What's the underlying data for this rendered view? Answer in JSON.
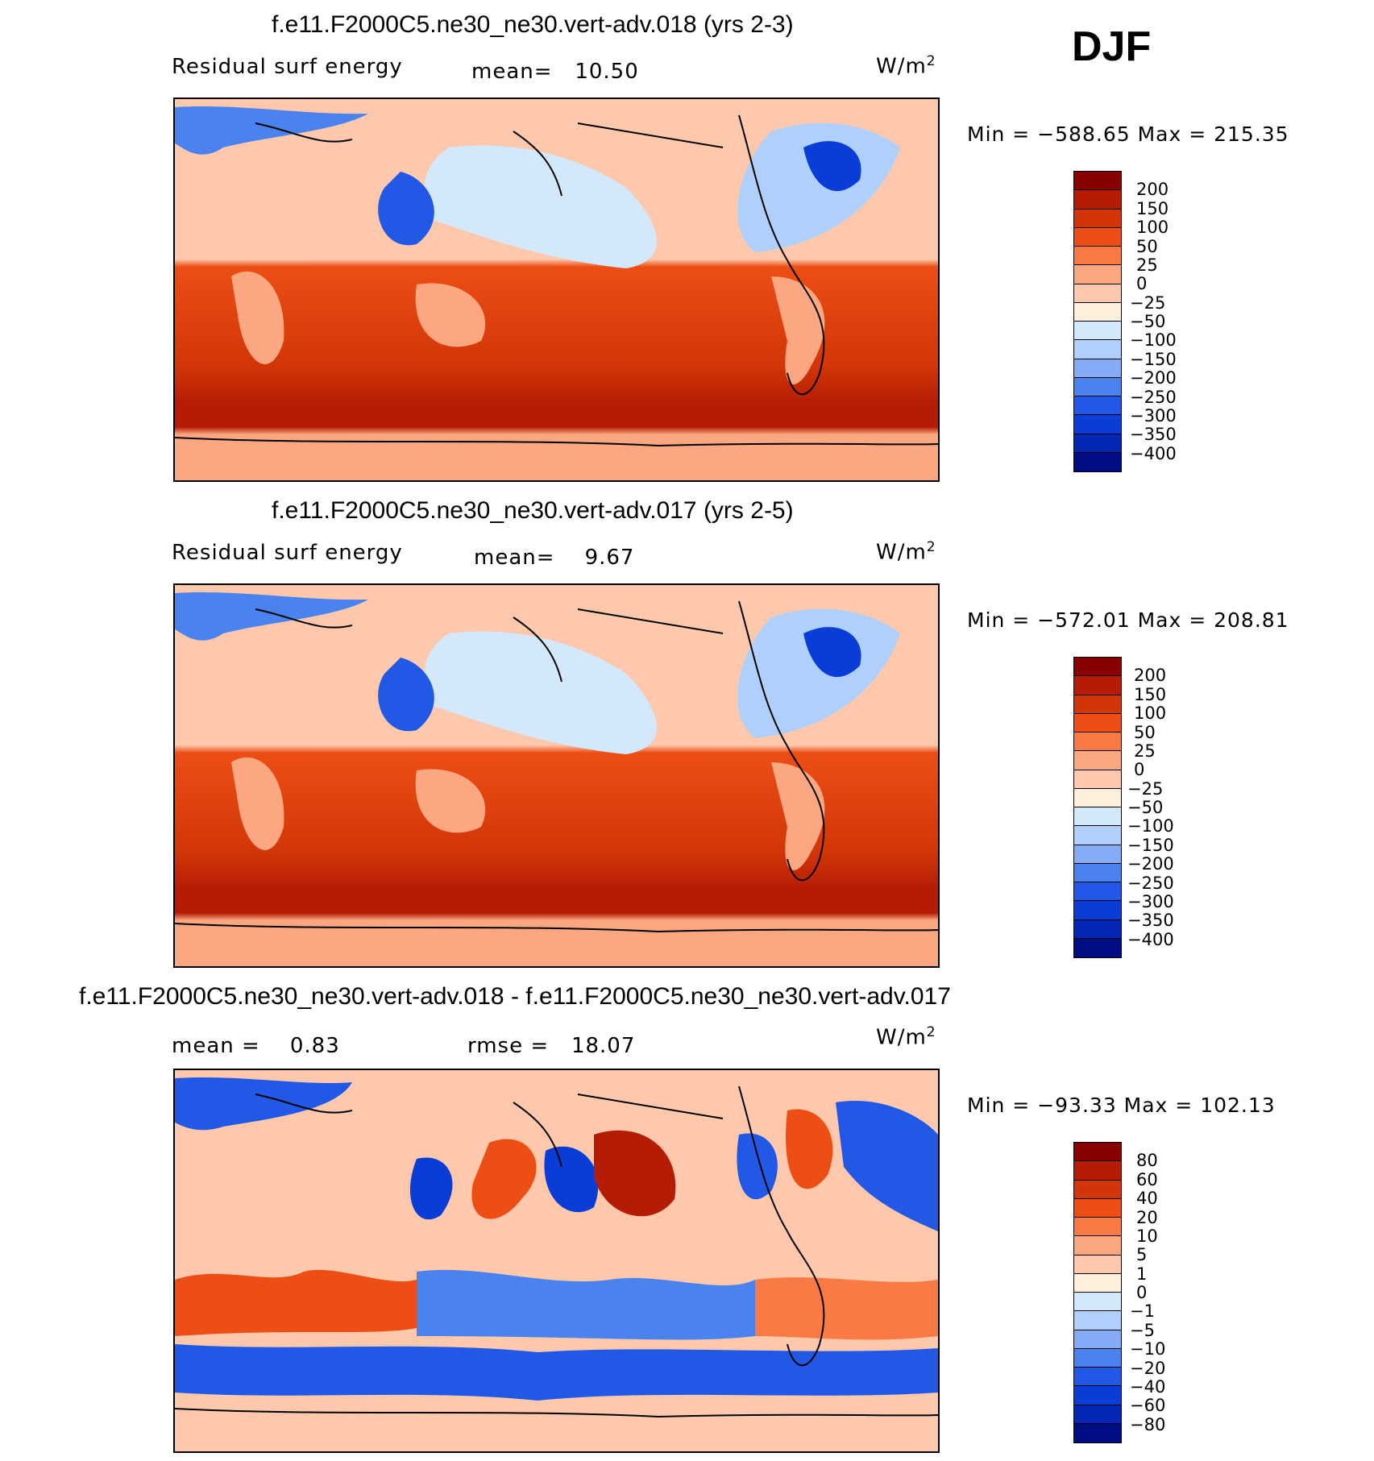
{
  "season": "DJF",
  "units": "W/m",
  "units_sup": "2",
  "panels": [
    {
      "title": "f.e11.F2000C5.ne30_ne30.vert-adv.018 (yrs 2-3)",
      "left_label": "Residual surf energy",
      "center_label": "mean=   10.50",
      "minmax": "Min = −588.65 Max = 215.35",
      "colorbar": {
        "labels": [
          "200",
          "150",
          "100",
          "50",
          "25",
          "0",
          "−25",
          "−50",
          "−100",
          "−150",
          "−200",
          "−250",
          "−300",
          "−350",
          "−400"
        ],
        "colors": [
          "#8a0000",
          "#b41c04",
          "#d23608",
          "#ec4e14",
          "#fa7a46",
          "#fba882",
          "#fdc8ac",
          "#fff0de",
          "#d4e8fc",
          "#aed0fa",
          "#84acf6",
          "#4a82ee",
          "#2258e6",
          "#0a3cd8",
          "#0426b4",
          "#000c82"
        ]
      }
    },
    {
      "title": "f.e11.F2000C5.ne30_ne30.vert-adv.017 (yrs 2-5)",
      "left_label": "Residual surf energy",
      "center_label": "mean=    9.67",
      "minmax": "Min = −572.01 Max = 208.81",
      "colorbar": {
        "labels": [
          "200",
          "150",
          "100",
          "50",
          "25",
          "0",
          "−25",
          "−50",
          "−100",
          "−150",
          "−200",
          "−250",
          "−300",
          "−350",
          "−400"
        ],
        "colors": [
          "#8a0000",
          "#b41c04",
          "#d23608",
          "#ec4e14",
          "#fa7a46",
          "#fba882",
          "#fdc8ac",
          "#fff0de",
          "#d4e8fc",
          "#aed0fa",
          "#84acf6",
          "#4a82ee",
          "#2258e6",
          "#0a3cd8",
          "#0426b4",
          "#000c82"
        ]
      }
    },
    {
      "title": "f.e11.F2000C5.ne30_ne30.vert-adv.018 - f.e11.F2000C5.ne30_ne30.vert-adv.017",
      "left_label": "mean =    0.83",
      "center_label": "rmse =   18.07",
      "minmax": "Min = −93.33 Max = 102.13",
      "colorbar": {
        "labels": [
          "80",
          "60",
          "40",
          "20",
          "10",
          "5",
          "1",
          "0",
          "−1",
          "−5",
          "−10",
          "−20",
          "−40",
          "−60",
          "−80"
        ],
        "colors": [
          "#8a0000",
          "#b41c04",
          "#d23608",
          "#ec4e14",
          "#fa7a46",
          "#fba882",
          "#fdc8ac",
          "#fff0de",
          "#d4e8fc",
          "#aed0fa",
          "#84acf6",
          "#4a82ee",
          "#2258e6",
          "#0a3cd8",
          "#0426b4",
          "#000c82"
        ]
      }
    }
  ]
}
